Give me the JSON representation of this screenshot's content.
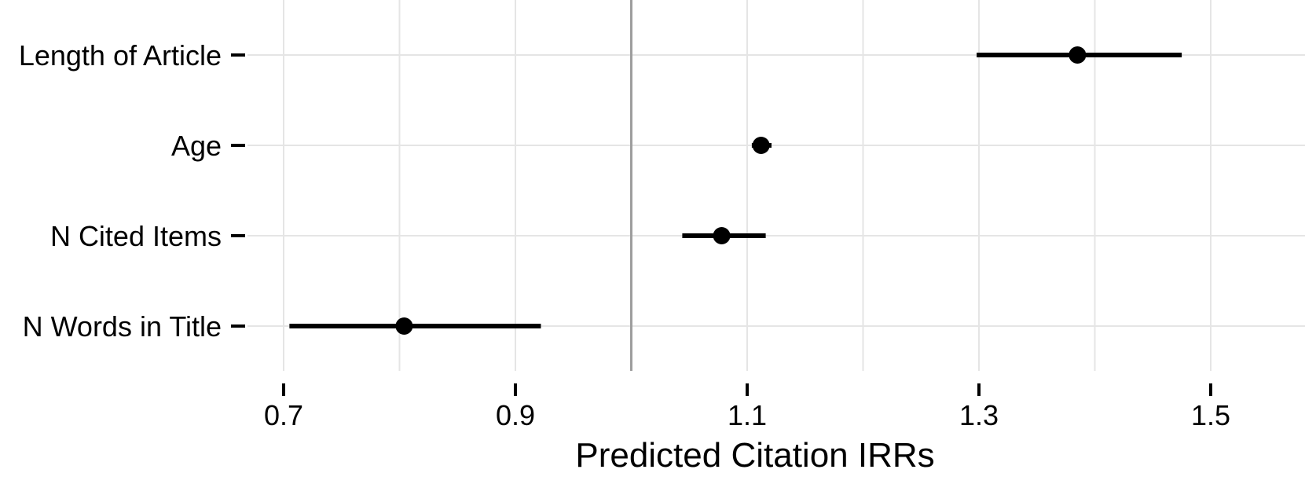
{
  "chart_data": {
    "type": "dot-whisker",
    "xlabel": "Predicted Citation IRRs",
    "ylabel": "",
    "xlim": [
      0.68,
      1.515
    ],
    "xticks": [
      0.7,
      0.9,
      1.1,
      1.3,
      1.5
    ],
    "xtick_labels": [
      "0.7",
      "0.9",
      "1.1",
      "1.3",
      "1.5"
    ],
    "reference_line": 1.0,
    "grid": true,
    "categories": [
      "Length of Article",
      "Age",
      "N Cited Items",
      "N Words in Title"
    ],
    "estimates": [
      1.385,
      1.112,
      1.078,
      0.804
    ],
    "lower": [
      1.298,
      1.104,
      1.044,
      0.705
    ],
    "upper": [
      1.475,
      1.121,
      1.116,
      0.922
    ]
  },
  "colors": {
    "background": "#ffffff",
    "grid": "#e5e5e5",
    "reference_line": "#9e9e9e",
    "marks": "#000000"
  }
}
